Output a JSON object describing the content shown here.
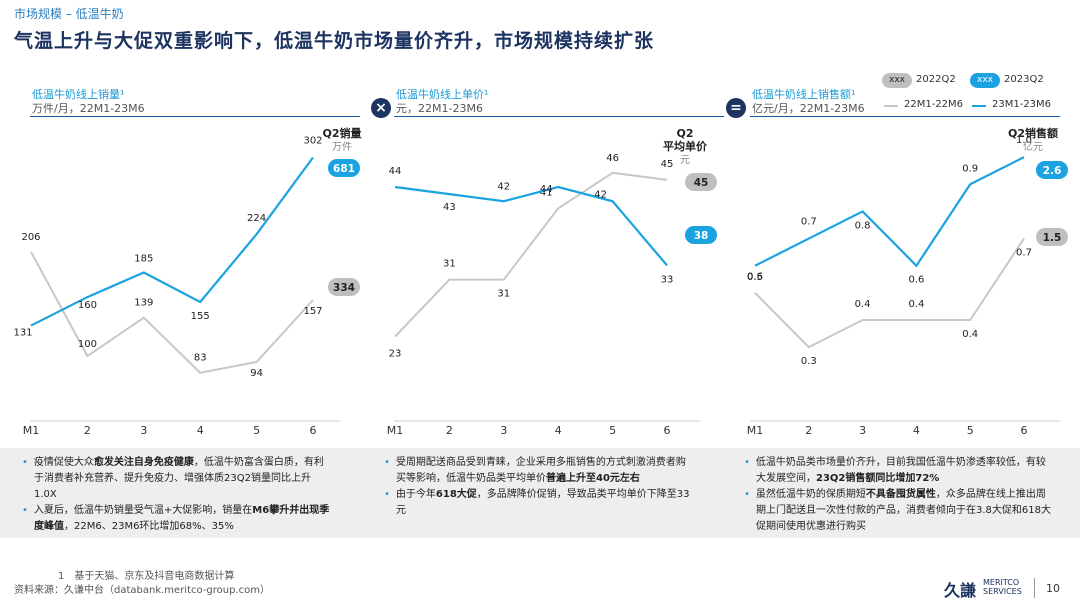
{
  "breadcrumb": "市场规模 – 低温牛奶",
  "title": "气温上升与大促双重影响下，低温牛奶市场量价齐升，市场规模持续扩张",
  "operators": [
    "×",
    "="
  ],
  "legend": {
    "q2_2022_pill": "xxx",
    "q2_2022_label": "2022Q2",
    "q2_2023_pill": "xxx",
    "q2_2023_label": "2023Q2",
    "line_2022_label": "22M1-22M6",
    "line_2023_label": "23M1-23M6"
  },
  "colors": {
    "series2022": "#c8c8c8",
    "series2023": "#1aa3e0",
    "pill2022": "#bfbfbf",
    "pill2023": "#1aa3e0",
    "dark": "#1d3360"
  },
  "panels": [
    {
      "title": "低温牛奶线上销量¹",
      "subtitle": "万件/月，22M1-23M6"
    },
    {
      "title": "低温牛奶线上单价¹",
      "subtitle": "元，22M1-23M6"
    },
    {
      "title": "低温牛奶线上销售额¹",
      "subtitle": "亿元/月，22M1-23M6"
    }
  ],
  "chart_data": [
    {
      "type": "line",
      "x": [
        "M1",
        "2",
        "3",
        "4",
        "5",
        "6"
      ],
      "series": [
        {
          "name": "22M1-22M6",
          "values": [
            206,
            100,
            139,
            83,
            94,
            157
          ]
        },
        {
          "name": "23M1-23M6",
          "values": [
            131,
            160,
            185,
            155,
            224,
            302
          ]
        }
      ],
      "q2_header": [
        "Q2销量",
        "万件"
      ],
      "q2_2022": "334",
      "q2_2023": "681",
      "ylim": [
        40,
        330
      ]
    },
    {
      "type": "line",
      "x": [
        "M1",
        "2",
        "3",
        "4",
        "5",
        "6"
      ],
      "series": [
        {
          "name": "22M1-22M6",
          "values": [
            23,
            31,
            31,
            41,
            46,
            45
          ]
        },
        {
          "name": "23M1-23M6",
          "values": [
            44,
            43,
            42,
            44,
            42,
            33
          ]
        }
      ],
      "q2_header": [
        "Q2",
        "平均单价",
        "元"
      ],
      "q2_2022": "45",
      "q2_2023": "38",
      "ylim": [
        12,
        52
      ]
    },
    {
      "type": "line",
      "x": [
        "M1",
        "2",
        "3",
        "4",
        "5",
        "6"
      ],
      "series": [
        {
          "name": "22M1-22M6",
          "values": [
            0.5,
            0.3,
            0.4,
            0.4,
            0.4,
            0.7
          ]
        },
        {
          "name": "23M1-23M6",
          "values": [
            0.6,
            0.7,
            0.8,
            0.6,
            0.9,
            1.0
          ]
        }
      ],
      "q2_header": [
        "Q2销售额",
        "亿元"
      ],
      "q2_2022": "1.5",
      "q2_2023": "2.6",
      "ylim": [
        0.05,
        1.1
      ]
    }
  ],
  "notes": [
    [
      {
        "pre": "疫情促使大众",
        "b": "愈发关注自身免疫健康",
        "post": "，低温牛奶富含蛋白质，有利于消费者补充营养、提升免疫力、增强体质23Q2销量同比上升1.0X"
      },
      {
        "pre": "入夏后，低温牛奶销量受气温+大促影响，销量在",
        "b": "M6攀升并出现季度峰值",
        "post": "，22M6、23M6环比增加68%、35%"
      }
    ],
    [
      {
        "pre": "受周期配送商品受到青睐，企业采用多瓶销售的方式刺激消费者购买等影响，低温牛奶品类平均单价",
        "b": "普遍上升至40元左右",
        "post": ""
      },
      {
        "pre": "由于今年",
        "b": "618大促",
        "post": "，多品牌降价促销，导致品类平均单价下降至33元"
      }
    ],
    [
      {
        "pre": "低温牛奶品类市场量价齐升，目前我国低温牛奶渗透率较低，有较大发展空间，",
        "b": "23Q2销售额同比增加72%",
        "post": ""
      },
      {
        "pre": "虽然低温牛奶的保质期短",
        "b": "不具备囤货属性",
        "post": "，众多品牌在线上推出周期上门配送且一次性付款的产品，消费者倾向于在3.8大促和618大促期间使用优惠进行购买"
      }
    ]
  ],
  "footnote": "1　基于天猫、京东及抖音电商数据计算",
  "source": "资料来源：久谦中台（databank.meritco-group.com）",
  "logo": {
    "cn": "久謙",
    "en1": "MERITCO",
    "en2": "SERVICES"
  },
  "page_number": "10"
}
